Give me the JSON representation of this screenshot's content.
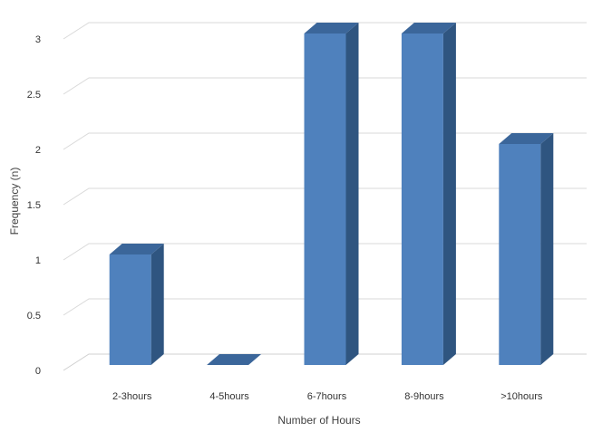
{
  "chart_data": {
    "type": "bar",
    "style": "3d-column",
    "categories": [
      "2-3hours",
      "4-5hours",
      "6-7hours",
      "8-9hours",
      ">10hours"
    ],
    "values": [
      1,
      0,
      3,
      3,
      2
    ],
    "xlabel": "Number of Hours",
    "ylabel": "Frequency (n)",
    "ylim": [
      0,
      3
    ],
    "yticks": [
      "0",
      "0.5",
      "1",
      "1.5",
      "2",
      "2.5",
      "3"
    ],
    "grid": true,
    "legend": "none",
    "colors": {
      "bar_front": "#4F81BD",
      "bar_side": "#2F5580",
      "bar_top": "#3B669A",
      "grid": "#D9D9D9",
      "floor": "#D0D0D0"
    }
  }
}
